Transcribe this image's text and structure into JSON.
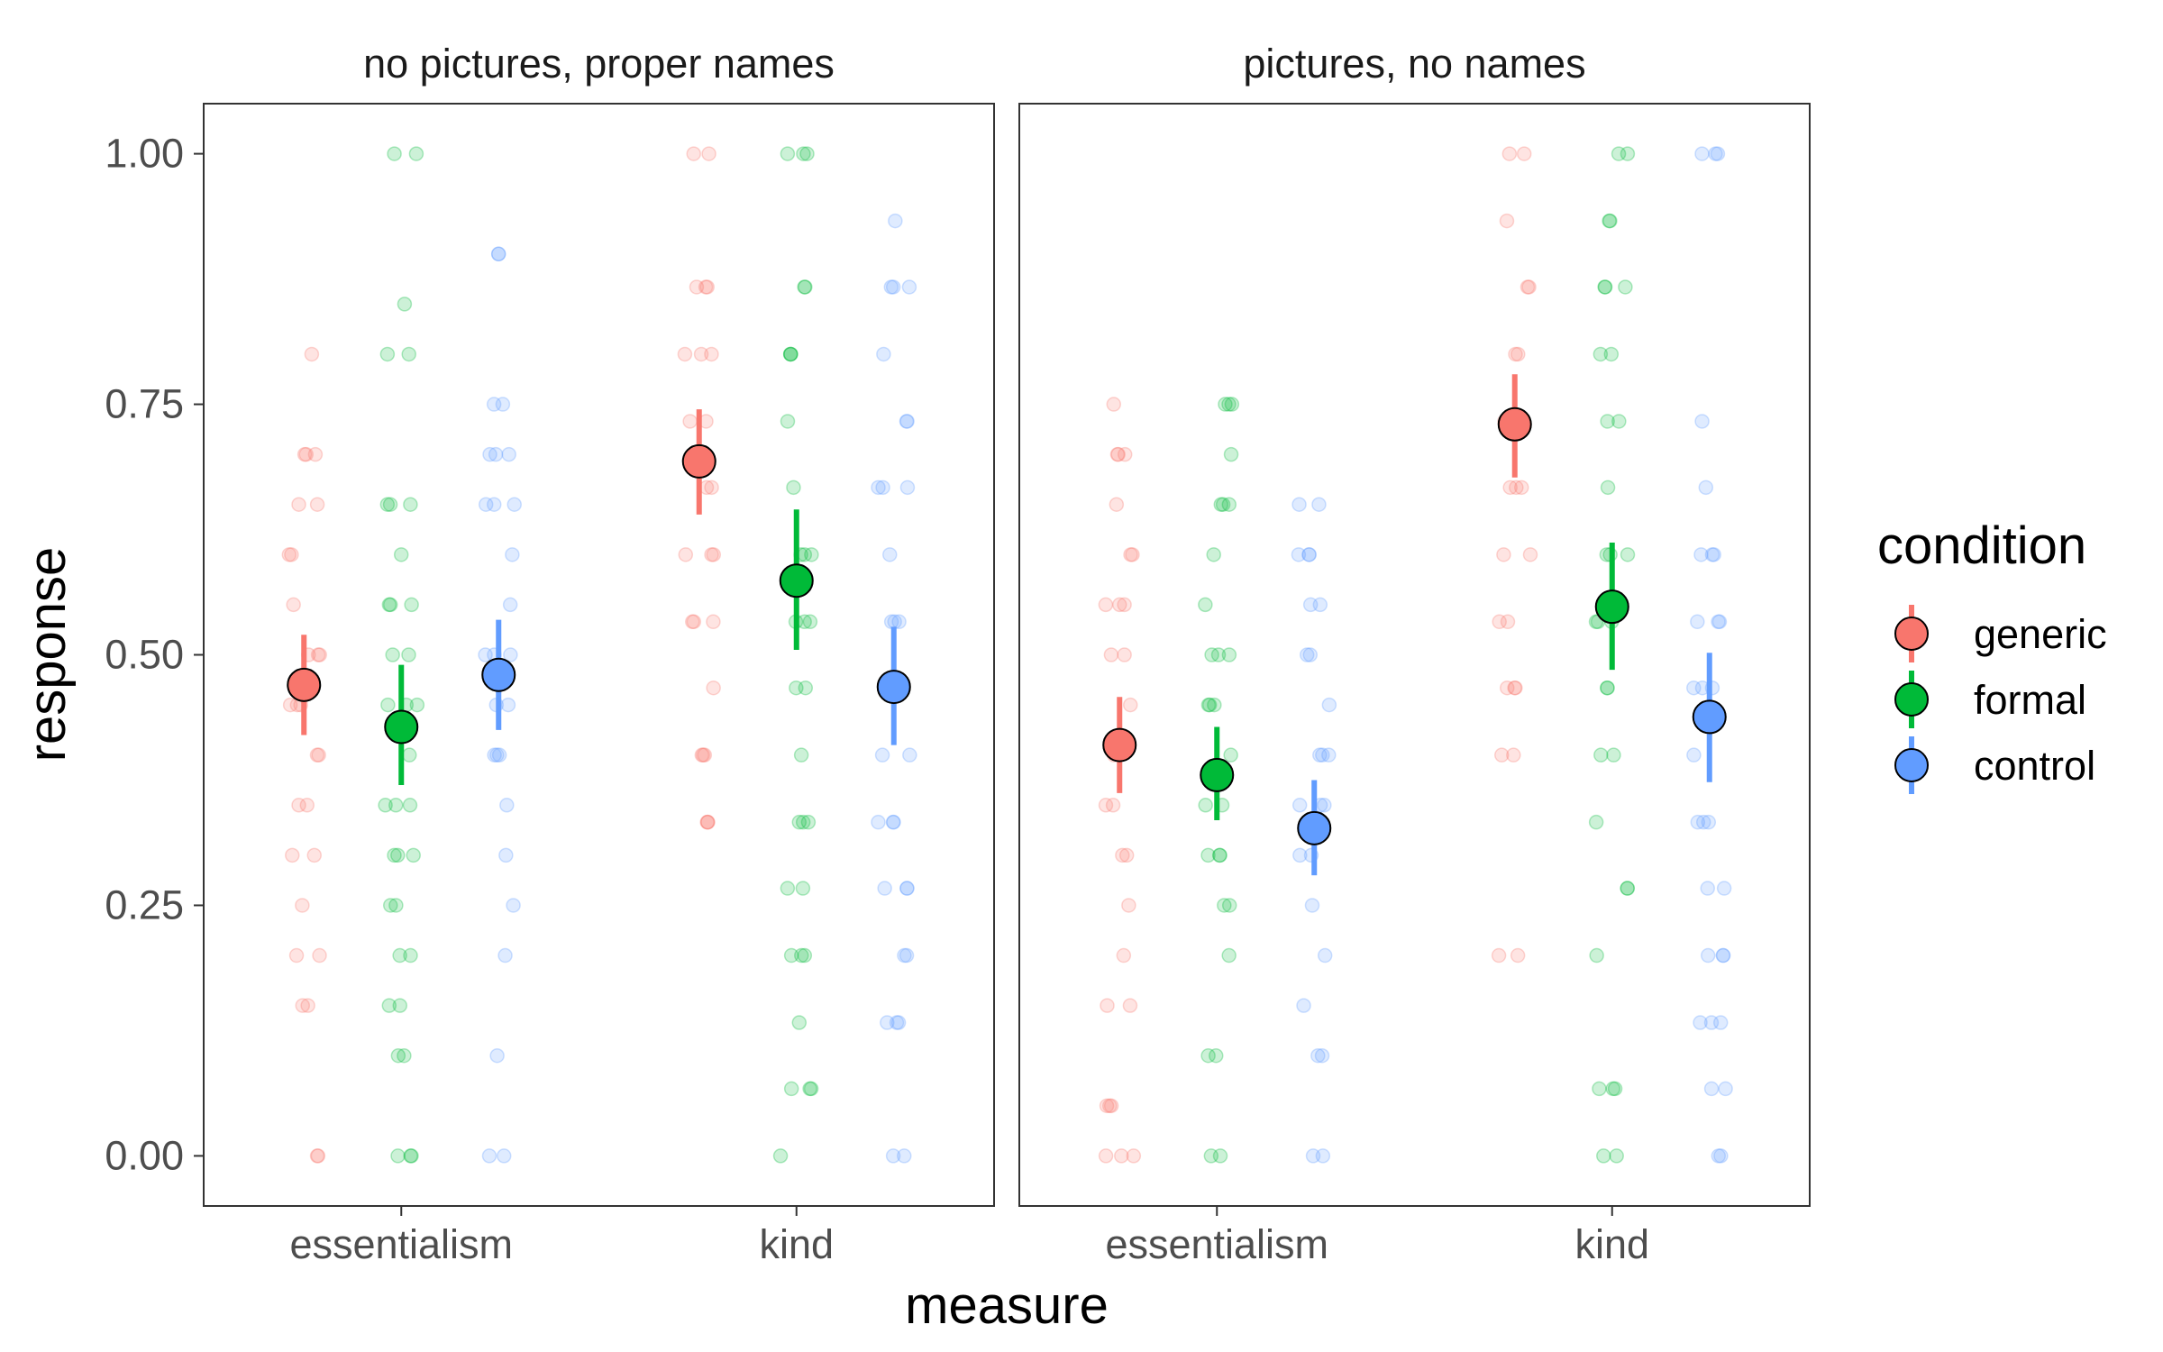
{
  "chart_data": {
    "type": "scatter",
    "xlabel": "measure",
    "ylabel": "response",
    "ylim": [
      -0.05,
      1.05
    ],
    "yticks": [
      "0.00",
      "0.25",
      "0.50",
      "0.75",
      "1.00"
    ],
    "categories": [
      "essentialism",
      "kind"
    ],
    "grid": false,
    "legend": {
      "title": "condition",
      "position": "right",
      "entries": [
        {
          "label": "generic",
          "color": "#F8766D"
        },
        {
          "label": "formal",
          "color": "#00BA38"
        },
        {
          "label": "control",
          "color": "#619CFF"
        }
      ]
    },
    "panels": [
      {
        "title": "no pictures, proper names",
        "summaries": [
          {
            "measure": "essentialism",
            "condition": "generic",
            "mean": 0.47,
            "lo": 0.42,
            "hi": 0.52
          },
          {
            "measure": "essentialism",
            "condition": "formal",
            "mean": 0.428,
            "lo": 0.37,
            "hi": 0.49
          },
          {
            "measure": "essentialism",
            "condition": "control",
            "mean": 0.48,
            "lo": 0.425,
            "hi": 0.535
          },
          {
            "measure": "kind",
            "condition": "generic",
            "mean": 0.693,
            "lo": 0.64,
            "hi": 0.745
          },
          {
            "measure": "kind",
            "condition": "formal",
            "mean": 0.574,
            "lo": 0.505,
            "hi": 0.645
          },
          {
            "measure": "kind",
            "condition": "control",
            "mean": 0.468,
            "lo": 0.41,
            "hi": 0.528
          }
        ],
        "raw": [
          {
            "measure": "essentialism",
            "condition": "generic",
            "values": [
              0.8,
              0.7,
              0.65,
              0.6,
              0.55,
              0.5,
              0.45,
              0.4,
              0.35,
              0.3,
              0.25,
              0.2,
              0.15,
              0.0
            ]
          },
          {
            "measure": "essentialism",
            "condition": "formal",
            "values": [
              1.0,
              0.85,
              0.8,
              0.65,
              0.6,
              0.55,
              0.5,
              0.45,
              0.4,
              0.35,
              0.3,
              0.25,
              0.2,
              0.15,
              0.1,
              0.0
            ]
          },
          {
            "measure": "essentialism",
            "condition": "control",
            "values": [
              0.9,
              0.75,
              0.7,
              0.65,
              0.6,
              0.55,
              0.5,
              0.45,
              0.4,
              0.35,
              0.3,
              0.25,
              0.2,
              0.1,
              0.0
            ]
          },
          {
            "measure": "kind",
            "condition": "generic",
            "values": [
              1.0,
              0.867,
              0.8,
              0.733,
              0.667,
              0.6,
              0.533,
              0.467,
              0.4,
              0.333
            ]
          },
          {
            "measure": "kind",
            "condition": "formal",
            "values": [
              1.0,
              0.867,
              0.8,
              0.733,
              0.667,
              0.6,
              0.533,
              0.467,
              0.4,
              0.333,
              0.267,
              0.2,
              0.133,
              0.067,
              0.0
            ]
          },
          {
            "measure": "kind",
            "condition": "control",
            "values": [
              0.933,
              0.867,
              0.8,
              0.733,
              0.667,
              0.6,
              0.533,
              0.467,
              0.4,
              0.333,
              0.267,
              0.2,
              0.133,
              0.0
            ]
          }
        ]
      },
      {
        "title": "pictures, no names",
        "summaries": [
          {
            "measure": "essentialism",
            "condition": "generic",
            "mean": 0.41,
            "lo": 0.362,
            "hi": 0.458
          },
          {
            "measure": "essentialism",
            "condition": "formal",
            "mean": 0.38,
            "lo": 0.335,
            "hi": 0.428
          },
          {
            "measure": "essentialism",
            "condition": "control",
            "mean": 0.327,
            "lo": 0.28,
            "hi": 0.375
          },
          {
            "measure": "kind",
            "condition": "generic",
            "mean": 0.73,
            "lo": 0.677,
            "hi": 0.78
          },
          {
            "measure": "kind",
            "condition": "formal",
            "mean": 0.548,
            "lo": 0.485,
            "hi": 0.612
          },
          {
            "measure": "kind",
            "condition": "control",
            "mean": 0.438,
            "lo": 0.373,
            "hi": 0.502
          }
        ],
        "raw": [
          {
            "measure": "essentialism",
            "condition": "generic",
            "values": [
              0.75,
              0.7,
              0.65,
              0.6,
              0.55,
              0.5,
              0.45,
              0.4,
              0.35,
              0.3,
              0.25,
              0.2,
              0.15,
              0.05,
              0.0
            ]
          },
          {
            "measure": "essentialism",
            "condition": "formal",
            "values": [
              0.75,
              0.7,
              0.65,
              0.6,
              0.55,
              0.5,
              0.45,
              0.4,
              0.35,
              0.3,
              0.25,
              0.2,
              0.1,
              0.0
            ]
          },
          {
            "measure": "essentialism",
            "condition": "control",
            "values": [
              0.65,
              0.6,
              0.55,
              0.5,
              0.45,
              0.4,
              0.35,
              0.3,
              0.25,
              0.2,
              0.15,
              0.1,
              0.0
            ]
          },
          {
            "measure": "kind",
            "condition": "generic",
            "values": [
              1.0,
              0.933,
              0.867,
              0.8,
              0.733,
              0.667,
              0.6,
              0.533,
              0.467,
              0.4,
              0.2
            ]
          },
          {
            "measure": "kind",
            "condition": "formal",
            "values": [
              1.0,
              0.933,
              0.867,
              0.8,
              0.733,
              0.667,
              0.6,
              0.533,
              0.467,
              0.4,
              0.333,
              0.267,
              0.2,
              0.067,
              0.0
            ]
          },
          {
            "measure": "kind",
            "condition": "control",
            "values": [
              1.0,
              0.733,
              0.667,
              0.6,
              0.533,
              0.467,
              0.4,
              0.333,
              0.267,
              0.2,
              0.133,
              0.067,
              0.0
            ]
          }
        ]
      }
    ]
  }
}
